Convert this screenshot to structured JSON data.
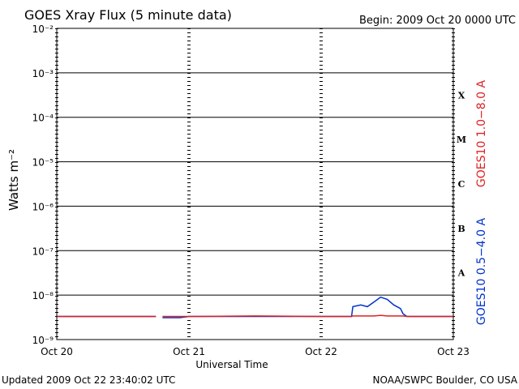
{
  "chart_data": {
    "type": "line",
    "title": "GOES Xray Flux (5 minute data)",
    "subtitle": "Begin:  2009 Oct 20 0000 UTC",
    "ylabel": "Watts m⁻²",
    "xlabel": "Universal Time",
    "updated": "Updated 2009 Oct 22 23:40:02 UTC",
    "source": "NOAA/SWPC Boulder, CO USA",
    "ylog": true,
    "grid": true,
    "ylim": [
      1e-09,
      0.01
    ],
    "yticks": [
      {
        "value": 1e-09,
        "label": "10⁻⁹"
      },
      {
        "value": 1e-08,
        "label": "10⁻⁸"
      },
      {
        "value": 1e-07,
        "label": "10⁻⁷"
      },
      {
        "value": 1e-06,
        "label": "10⁻⁶"
      },
      {
        "value": 1e-05,
        "label": "10⁻⁵"
      },
      {
        "value": 0.0001,
        "label": "10⁻⁴"
      },
      {
        "value": 0.001,
        "label": "10⁻³"
      },
      {
        "value": 0.01,
        "label": "10⁻²"
      }
    ],
    "xlim": [
      0,
      3
    ],
    "xticks": [
      {
        "value": 0,
        "label": "Oct 20"
      },
      {
        "value": 1,
        "label": "Oct 21"
      },
      {
        "value": 2,
        "label": "Oct 22"
      },
      {
        "value": 3,
        "label": "Oct 23"
      }
    ],
    "flare_classes": [
      {
        "value": 1e-08,
        "label": "A"
      },
      {
        "value": 1e-07,
        "label": "B"
      },
      {
        "value": 1e-06,
        "label": "C"
      },
      {
        "value": 1e-05,
        "label": "M"
      },
      {
        "value": 0.0001,
        "label": "X"
      }
    ],
    "x": [
      0,
      0.5,
      0.75,
      0.77,
      0.8,
      0.93,
      1.0,
      1.5,
      2.0,
      2.23,
      2.24,
      2.3,
      2.35,
      2.4,
      2.45,
      2.5,
      2.55,
      2.6,
      2.62,
      2.65,
      3.0
    ],
    "series": [
      {
        "name": "GOES10 0.5−4.0 A",
        "color": "#0033cc",
        "values": [
          3.3e-09,
          3.3e-09,
          3.3e-09,
          null,
          3.1e-09,
          3.1e-09,
          3.3e-09,
          3.3e-09,
          3.3e-09,
          3.3e-09,
          5.5e-09,
          6e-09,
          5.5e-09,
          7e-09,
          9e-09,
          8e-09,
          6e-09,
          5e-09,
          3.8e-09,
          3.3e-09,
          3.3e-09
        ]
      },
      {
        "name": "GOES10 1.0−8.0 A",
        "color": "#dd2222",
        "values": [
          3.3e-09,
          3.3e-09,
          3.3e-09,
          null,
          3.3e-09,
          3.3e-09,
          3.3e-09,
          3.4e-09,
          3.3e-09,
          3.3e-09,
          3.4e-09,
          3.4e-09,
          3.4e-09,
          3.4e-09,
          3.5e-09,
          3.4e-09,
          3.4e-09,
          3.4e-09,
          3.4e-09,
          3.3e-09,
          3.3e-09
        ]
      }
    ]
  }
}
